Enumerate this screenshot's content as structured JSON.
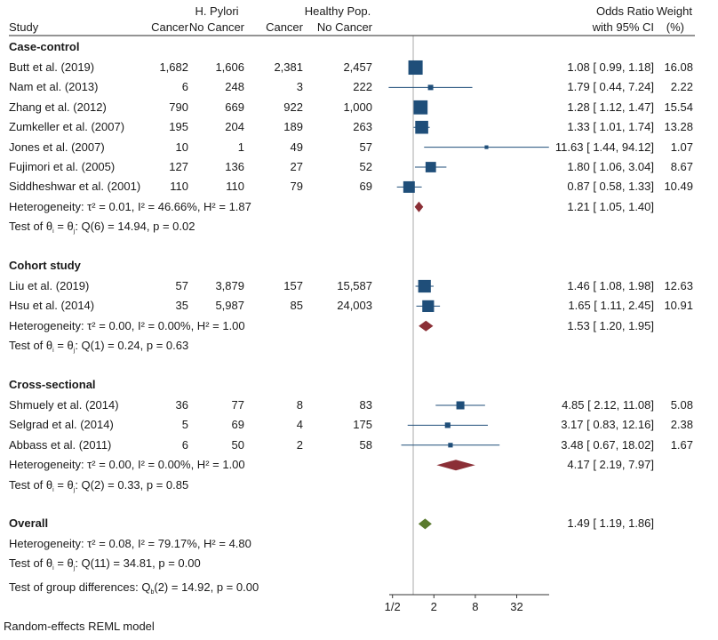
{
  "chart_data": {
    "type": "forest",
    "title": "",
    "xlabel": "",
    "xscale": "log2",
    "xlim": [
      0.43,
      105
    ],
    "x_ticks": [
      0.5,
      2,
      8,
      32
    ],
    "x_tick_labels": [
      "1/2",
      "2",
      "8",
      "32"
    ],
    "reference_line": 1,
    "colors": {
      "study_marker": "#1f4e79",
      "subgroup_diamond": "#8b2f36",
      "overall_diamond": "#5a7a2e",
      "reference_line": "#c6c6c6",
      "axis": "#333333"
    },
    "header": {
      "study": "Study",
      "group1": "H. Pylori",
      "group2": "Healthy Pop.",
      "cancer": "Cancer",
      "no_cancer": "No Cancer",
      "or_line1": "Odds Ratio",
      "or_line2": "with 95% CI",
      "weight_line1": "Weight",
      "weight_line2": "(%)"
    },
    "subgroups": [
      {
        "name": "Case-control",
        "studies": [
          {
            "study": "Butt et al. (2019)",
            "hp_cancer": "1,682",
            "hp_nocancer": "1,606",
            "hc_cancer": "2,381",
            "hc_nocancer": "2,457",
            "or": 1.08,
            "lo": 0.99,
            "hi": 1.18,
            "ci_text": "1.08 [ 0.99,    1.18]",
            "weight": 16.08
          },
          {
            "study": "Nam et al. (2013)",
            "hp_cancer": "6",
            "hp_nocancer": "248",
            "hc_cancer": "3",
            "hc_nocancer": "222",
            "or": 1.79,
            "lo": 0.44,
            "hi": 7.24,
            "ci_text": "1.79 [ 0.44,    7.24]",
            "weight": 2.22
          },
          {
            "study": "Zhang et al. (2012)",
            "hp_cancer": "790",
            "hp_nocancer": "669",
            "hc_cancer": "922",
            "hc_nocancer": "1,000",
            "or": 1.28,
            "lo": 1.12,
            "hi": 1.47,
            "ci_text": "1.28 [ 1.12,    1.47]",
            "weight": 15.54
          },
          {
            "study": "Zumkeller et al. (2007)",
            "hp_cancer": "195",
            "hp_nocancer": "204",
            "hc_cancer": "189",
            "hc_nocancer": "263",
            "or": 1.33,
            "lo": 1.01,
            "hi": 1.74,
            "ci_text": "1.33 [ 1.01,    1.74]",
            "weight": 13.28
          },
          {
            "study": "Jones et al. (2007)",
            "hp_cancer": "10",
            "hp_nocancer": "1",
            "hc_cancer": "49",
            "hc_nocancer": "57",
            "or": 11.63,
            "lo": 1.44,
            "hi": 94.12,
            "ci_text": "11.63 [ 1.44,  94.12]",
            "weight": 1.07
          },
          {
            "study": "Fujimori et al. (2005)",
            "hp_cancer": "127",
            "hp_nocancer": "136",
            "hc_cancer": "27",
            "hc_nocancer": "52",
            "or": 1.8,
            "lo": 1.06,
            "hi": 3.04,
            "ci_text": "1.80 [ 1.06,    3.04]",
            "weight": 8.67
          },
          {
            "study": "Siddheshwar et al. (2001)",
            "hp_cancer": "110",
            "hp_nocancer": "110",
            "hc_cancer": "79",
            "hc_nocancer": "69",
            "or": 0.87,
            "lo": 0.58,
            "hi": 1.33,
            "ci_text": "0.87 [ 0.58,    1.33]",
            "weight": 10.49
          }
        ],
        "pooled": {
          "or": 1.21,
          "lo": 1.05,
          "hi": 1.4,
          "ci_text": "1.21 [ 1.05,    1.40]"
        },
        "heterogeneity": "Heterogeneity: τ² = 0.01, I² = 46.66%, H² = 1.87",
        "test_prefix": "Test of θ",
        "test_suffix": ": Q(6) = 14.94, p = 0.02"
      },
      {
        "name": "Cohort study",
        "studies": [
          {
            "study": "Liu et al. (2019)",
            "hp_cancer": "57",
            "hp_nocancer": "3,879",
            "hc_cancer": "157",
            "hc_nocancer": "15,587",
            "or": 1.46,
            "lo": 1.08,
            "hi": 1.98,
            "ci_text": "1.46 [ 1.08,    1.98]",
            "weight": 12.63
          },
          {
            "study": "Hsu et al. (2014)",
            "hp_cancer": "35",
            "hp_nocancer": "5,987",
            "hc_cancer": "85",
            "hc_nocancer": "24,003",
            "or": 1.65,
            "lo": 1.11,
            "hi": 2.45,
            "ci_text": "1.65 [ 1.11,    2.45]",
            "weight": 10.91
          }
        ],
        "pooled": {
          "or": 1.53,
          "lo": 1.2,
          "hi": 1.95,
          "ci_text": "1.53 [ 1.20,    1.95]"
        },
        "heterogeneity": "Heterogeneity: τ² = 0.00, I² = 0.00%, H² = 1.00",
        "test_prefix": "Test of θ",
        "test_suffix": ": Q(1) = 0.24, p = 0.63"
      },
      {
        "name": "Cross-sectional",
        "studies": [
          {
            "study": "Shmuely et al. (2014)",
            "hp_cancer": "36",
            "hp_nocancer": "77",
            "hc_cancer": "8",
            "hc_nocancer": "83",
            "or": 4.85,
            "lo": 2.12,
            "hi": 11.08,
            "ci_text": "4.85 [ 2.12,  11.08]",
            "weight": 5.08
          },
          {
            "study": "Selgrad et al. (2014)",
            "hp_cancer": "5",
            "hp_nocancer": "69",
            "hc_cancer": "4",
            "hc_nocancer": "175",
            "or": 3.17,
            "lo": 0.83,
            "hi": 12.16,
            "ci_text": "3.17 [ 0.83,  12.16]",
            "weight": 2.38
          },
          {
            "study": "Abbass et al. (2011)",
            "hp_cancer": "6",
            "hp_nocancer": "50",
            "hc_cancer": "2",
            "hc_nocancer": "58",
            "or": 3.48,
            "lo": 0.67,
            "hi": 18.02,
            "ci_text": "3.48 [ 0.67,  18.02]",
            "weight": 1.67
          }
        ],
        "pooled": {
          "or": 4.17,
          "lo": 2.19,
          "hi": 7.97,
          "ci_text": "4.17 [ 2.19,    7.97]"
        },
        "heterogeneity": "Heterogeneity: τ² = 0.00, I² = 0.00%, H² = 1.00",
        "test_prefix": "Test of θ",
        "test_suffix": ": Q(2) = 0.33, p = 0.85"
      }
    ],
    "overall": {
      "name": "Overall",
      "or": 1.49,
      "lo": 1.19,
      "hi": 1.86,
      "ci_text": "1.49 [ 1.19,    1.86]",
      "heterogeneity": "Heterogeneity: τ² = 0.08, I² = 79.17%, H² = 4.80",
      "test_prefix": "Test of θ",
      "test_suffix": ": Q(11) = 34.81, p = 0.00",
      "group_diff_prefix": "Test of group differences: Q",
      "group_diff_sub": "b",
      "group_diff_suffix": "(2) = 14.92, p = 0.00"
    },
    "footnote": "Random-effects REML model",
    "subscripts": {
      "i": "i",
      "j": "j",
      "eq": " = θ"
    }
  }
}
